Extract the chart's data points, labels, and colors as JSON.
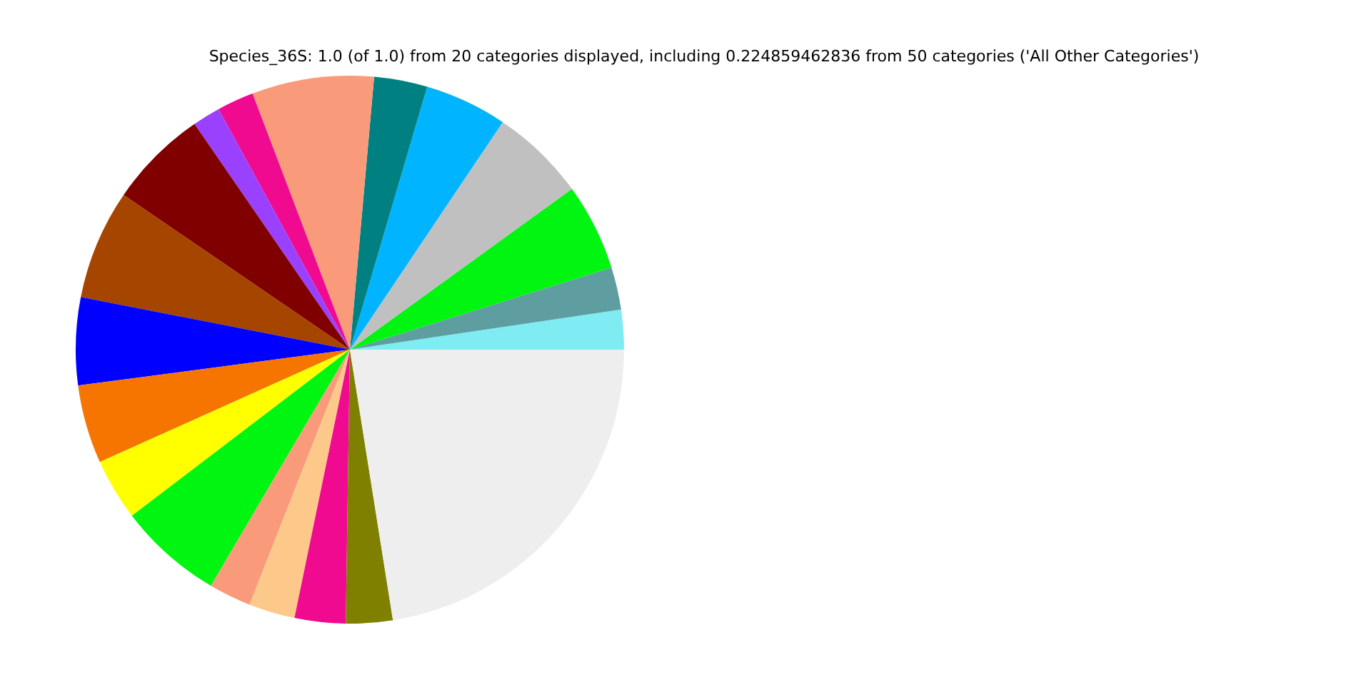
{
  "chart_data": {
    "type": "pie",
    "title": "Species_36S: 1.0 (of 1.0) from 20 categories displayed, including 0.224859462836 from 50 categories ('All Other Categories')",
    "categories": [
      null,
      null,
      null,
      null,
      null,
      null,
      null,
      null,
      null,
      null,
      null,
      null,
      null,
      null,
      null,
      null,
      null,
      null,
      null,
      null
    ],
    "values": [
      2.34,
      2.5,
      5.14,
      5.61,
      4.86,
      3.14,
      7.19,
      2.17,
      1.64,
      5.86,
      6.47,
      5.17,
      4.64,
      3.64,
      6.17,
      2.5,
      2.72,
      3.0,
      2.75,
      22.49
    ],
    "colors": [
      "#7fecf4",
      "#5f9ea0",
      "#00f510",
      "#c0c0c0",
      "#00b4ff",
      "#008080",
      "#f99b7b",
      "#ef0a8f",
      "#9a40ff",
      "#800000",
      "#a54500",
      "#0000ff",
      "#f57500",
      "#ffff00",
      "#00f510",
      "#f99b7b",
      "#fdc98b",
      "#ef0a8f",
      "#808000",
      "#eeeeee"
    ],
    "legend": false
  }
}
